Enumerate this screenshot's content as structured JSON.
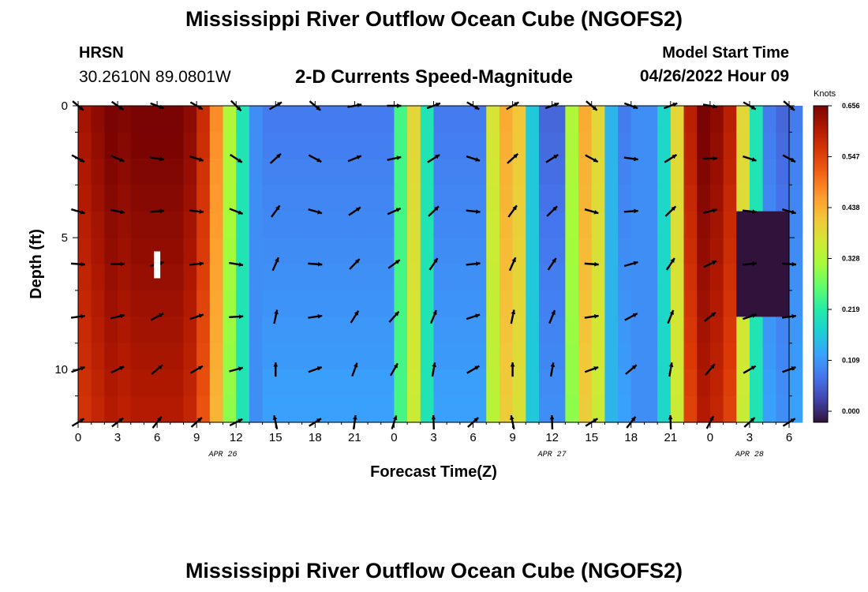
{
  "header": {
    "title": "Mississippi River Outflow Ocean Cube (NGOFS2)",
    "station": "HRSN",
    "coordinates": "30.2610N  89.0801W",
    "subtitle": "2-D Currents Speed-Magnitude",
    "model_start_label": "Model Start Time",
    "model_start_value": "04/26/2022 Hour 09"
  },
  "footer": {
    "title": "Mississippi River Outflow Ocean Cube (NGOFS2)"
  },
  "chart_data": {
    "type": "heatmap",
    "xlabel": "Forecast Time(Z)",
    "ylabel": "Depth (ft)",
    "x_hours": [
      0,
      54
    ],
    "y_depth_ft": [
      0,
      12
    ],
    "x_ticks": [
      "0",
      "3",
      "6",
      "9",
      "12",
      "15",
      "18",
      "21",
      "0",
      "3",
      "6",
      "9",
      "12",
      "15",
      "18",
      "21",
      "0",
      "3",
      "6"
    ],
    "y_ticks": [
      "0",
      "5",
      "10"
    ],
    "date_labels": [
      {
        "text": "APR 26",
        "hour": 11
      },
      {
        "text": "APR 27",
        "hour": 36
      },
      {
        "text": "APR 28",
        "hour": 51
      }
    ],
    "colorbar": {
      "unit": "Knots",
      "ticks": [
        "0.656",
        "0.547",
        "0.438",
        "0.328",
        "0.219",
        "0.109",
        "0.000"
      ],
      "range": [
        0.0,
        0.656
      ],
      "colors": [
        "#30123b",
        "#4145ab",
        "#4675ed",
        "#39a2fc",
        "#1bcfd4",
        "#24eca6",
        "#61fc6c",
        "#a4fc3b",
        "#d1e834",
        "#f3c63a",
        "#fe9b2d",
        "#f36315",
        "#d93807",
        "#b11901",
        "#7a0403"
      ]
    },
    "speed_profile_surface_hourly": [
      0.62,
      0.64,
      0.66,
      0.65,
      0.66,
      0.66,
      0.66,
      0.66,
      0.64,
      0.58,
      0.48,
      0.34,
      0.22,
      0.12,
      0.1,
      0.1,
      0.1,
      0.1,
      0.1,
      0.1,
      0.1,
      0.1,
      0.1,
      0.1,
      0.26,
      0.4,
      0.22,
      0.1,
      0.1,
      0.1,
      0.1,
      0.38,
      0.45,
      0.42,
      0.18,
      0.08,
      0.08,
      0.34,
      0.45,
      0.4,
      0.16,
      0.1,
      0.12,
      0.12,
      0.2,
      0.4,
      0.6,
      0.66,
      0.64,
      0.6,
      0.4,
      0.22,
      0.1,
      0.08,
      0.1,
      0.18
    ],
    "marker": {
      "hour": 6.0,
      "depth_ft": 6.0
    }
  }
}
